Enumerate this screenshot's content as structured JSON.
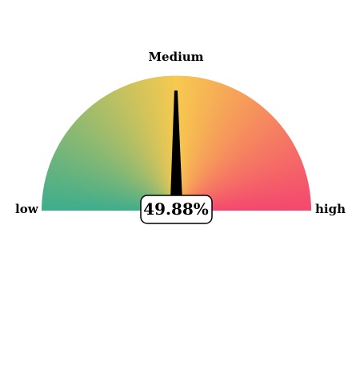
{
  "chart_data": {
    "type": "gauge",
    "value_percent": 49.88,
    "value_label": "49.88%",
    "range": [
      0,
      100
    ],
    "min_label": "low",
    "max_label": "high",
    "mid_label": "Medium",
    "colors": {
      "low": "#3ead8c",
      "mid": "#f7c94f",
      "high": "#f4476f",
      "needle": "#000000",
      "value_box_border": "#000000",
      "value_box_fill": "#ffffff"
    }
  }
}
